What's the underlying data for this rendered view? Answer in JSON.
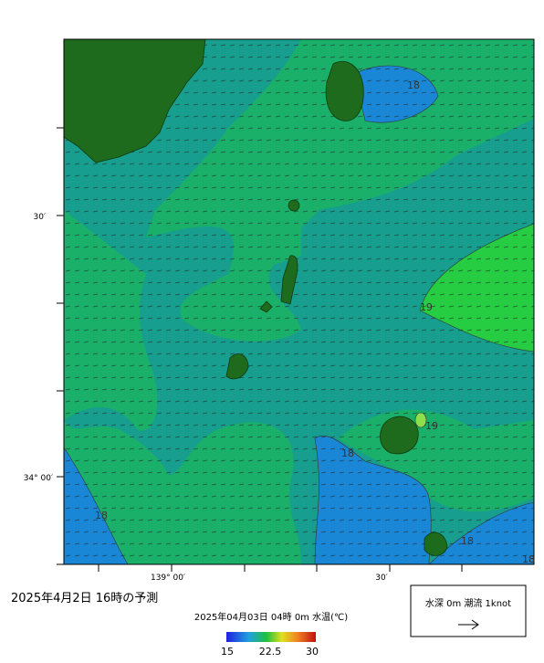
{
  "axes": {
    "lat_30": "30′",
    "lat_34": "34° 00′",
    "lon_139": "139° 00′",
    "lon_30": "30′"
  },
  "contours": [
    "18",
    "19",
    "19",
    "18",
    "18",
    "18",
    "18"
  ],
  "title": "2025年4月2日 16時の予測",
  "colorbar": {
    "caption": "2025年04月03日 04時 0m 水温(℃)",
    "labels": [
      "15",
      "22.5",
      "30"
    ]
  },
  "legend": {
    "label": "水深 0m 潮流 1knot"
  }
}
